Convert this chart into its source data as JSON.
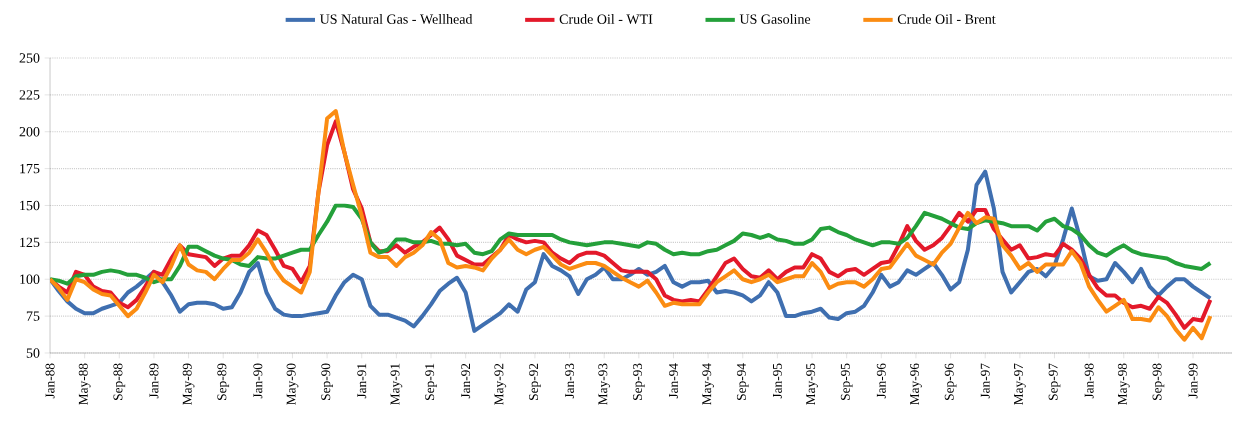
{
  "chart_data": {
    "type": "line",
    "categories": [
      "Jan-88",
      null,
      null,
      null,
      "May-88",
      null,
      null,
      null,
      "Sep-88",
      null,
      null,
      null,
      "Jan-89",
      null,
      null,
      null,
      "May-89",
      null,
      null,
      null,
      "Sep-89",
      null,
      null,
      null,
      "Jan-90",
      null,
      null,
      null,
      "May-90",
      null,
      null,
      null,
      "Sep-90",
      null,
      null,
      null,
      "Jan-91",
      null,
      null,
      null,
      "May-91",
      null,
      null,
      null,
      "Sep-91",
      null,
      null,
      null,
      "Jan-92",
      null,
      null,
      null,
      "May-92",
      null,
      null,
      null,
      "Sep-92",
      null,
      null,
      null,
      "Jan-93",
      null,
      null,
      null,
      "May-93",
      null,
      null,
      null,
      "Sep-93",
      null,
      null,
      null,
      "Jan-94",
      null,
      null,
      null,
      "May-94",
      null,
      null,
      null,
      "Sep-94",
      null,
      null,
      null,
      "Jan-95",
      null,
      null,
      null,
      "May-95",
      null,
      null,
      null,
      "Sep-95",
      null,
      null,
      null,
      "Jan-96",
      null,
      null,
      null,
      "May-96",
      null,
      null,
      null,
      "Sep-96",
      null,
      null,
      null,
      "Jan-97",
      null,
      null,
      null,
      "May-97",
      null,
      null,
      null,
      "Sep-97",
      null,
      null,
      null,
      "Jan-98",
      null,
      null,
      null,
      "May-98",
      null,
      null,
      null,
      "Sep-98",
      null,
      null,
      null,
      "Jan-99",
      null,
      null
    ],
    "series": [
      {
        "name": "US Natural Gas - Wellhead",
        "color": "#3f6fb0",
        "values": [
          100,
          92,
          85,
          80,
          77,
          77,
          80,
          82,
          84,
          91,
          95,
          100,
          105,
          98,
          89,
          78,
          83,
          84,
          84,
          83,
          80,
          81,
          91,
          105,
          111,
          91,
          80,
          76,
          75,
          75,
          76,
          77,
          78,
          89,
          98,
          103,
          100,
          82,
          76,
          76,
          74,
          72,
          68,
          75,
          83,
          92,
          97,
          101,
          91,
          65,
          69,
          73,
          77,
          83,
          78,
          93,
          98,
          117,
          109,
          106,
          102,
          90,
          100,
          103,
          108,
          100,
          100,
          103,
          107,
          103,
          105,
          109,
          98,
          95,
          98,
          98,
          99,
          91,
          92,
          91,
          89,
          85,
          89,
          98,
          91,
          75,
          75,
          77,
          78,
          80,
          74,
          73,
          77,
          78,
          82,
          91,
          103,
          95,
          98,
          106,
          103,
          107,
          111,
          103,
          93,
          98,
          120,
          164,
          173,
          148,
          105,
          91,
          98,
          105,
          107,
          102,
          109,
          127,
          148,
          127,
          102,
          99,
          100,
          111,
          105,
          98,
          107,
          95,
          89,
          95,
          100,
          100,
          95,
          91,
          87
        ]
      },
      {
        "name": "Crude Oil - WTI",
        "color": "#e3192a",
        "values": [
          100,
          95,
          91,
          105,
          103,
          95,
          92,
          91,
          84,
          81,
          86,
          95,
          105,
          103,
          114,
          123,
          117,
          116,
          115,
          109,
          114,
          116,
          116,
          123,
          133,
          130,
          120,
          109,
          107,
          98,
          109,
          159,
          191,
          207,
          186,
          161,
          148,
          125,
          119,
          119,
          123,
          118,
          122,
          125,
          130,
          135,
          127,
          116,
          113,
          110,
          110,
          115,
          120,
          130,
          127,
          125,
          126,
          125,
          118,
          114,
          111,
          116,
          118,
          118,
          116,
          111,
          106,
          105,
          105,
          105,
          100,
          89,
          86,
          85,
          86,
          85,
          93,
          102,
          111,
          114,
          107,
          102,
          101,
          106,
          100,
          105,
          108,
          108,
          117,
          114,
          105,
          102,
          106,
          107,
          103,
          107,
          111,
          112,
          123,
          136,
          126,
          120,
          123,
          128,
          136,
          145,
          139,
          147,
          147,
          134,
          127,
          120,
          123,
          114,
          115,
          117,
          116,
          124,
          120,
          114,
          103,
          94,
          89,
          89,
          84,
          81,
          82,
          80,
          88,
          84,
          76,
          67,
          73,
          72,
          86
        ]
      },
      {
        "name": "US Gasoline",
        "color": "#24a03a",
        "values": [
          100,
          99,
          97,
          102,
          103,
          103,
          105,
          106,
          105,
          103,
          103,
          101,
          98,
          100,
          100,
          109,
          122,
          122,
          119,
          116,
          114,
          113,
          110,
          109,
          115,
          114,
          114,
          116,
          118,
          120,
          120,
          130,
          139,
          150,
          150,
          149,
          141,
          125,
          118,
          120,
          127,
          127,
          125,
          125,
          126,
          124,
          124,
          123,
          124,
          118,
          117,
          119,
          127,
          131,
          130,
          130,
          130,
          130,
          130,
          127,
          125,
          124,
          123,
          124,
          125,
          125,
          124,
          123,
          122,
          125,
          124,
          120,
          117,
          118,
          117,
          117,
          119,
          120,
          123,
          126,
          131,
          130,
          128,
          130,
          127,
          126,
          124,
          124,
          127,
          134,
          135,
          132,
          130,
          127,
          125,
          123,
          125,
          125,
          124,
          128,
          136,
          145,
          143,
          141,
          138,
          135,
          134,
          138,
          140,
          139,
          138,
          136,
          136,
          136,
          133,
          139,
          141,
          136,
          134,
          130,
          123,
          118,
          116,
          120,
          123,
          119,
          117,
          116,
          115,
          114,
          111,
          109,
          108,
          107,
          111
        ]
      },
      {
        "name": "Crude Oil - Brent",
        "color": "#fb8c12",
        "values": [
          100,
          94,
          86,
          100,
          98,
          93,
          90,
          89,
          82,
          75,
          80,
          91,
          103,
          98,
          109,
          123,
          110,
          106,
          105,
          100,
          107,
          113,
          113,
          118,
          127,
          118,
          107,
          99,
          95,
          91,
          105,
          159,
          209,
          214,
          186,
          164,
          143,
          118,
          115,
          115,
          109,
          115,
          118,
          123,
          132,
          127,
          111,
          108,
          109,
          108,
          106,
          114,
          120,
          127,
          120,
          117,
          120,
          122,
          116,
          110,
          107,
          109,
          111,
          111,
          109,
          105,
          101,
          98,
          95,
          99,
          91,
          82,
          84,
          83,
          83,
          83,
          91,
          98,
          102,
          106,
          100,
          98,
          100,
          103,
          98,
          100,
          102,
          102,
          111,
          105,
          94,
          97,
          98,
          98,
          95,
          100,
          107,
          108,
          116,
          124,
          116,
          113,
          110,
          118,
          124,
          135,
          145,
          138,
          142,
          141,
          123,
          116,
          107,
          111,
          105,
          110,
          110,
          110,
          119,
          111,
          95,
          86,
          78,
          82,
          86,
          73,
          73,
          72,
          81,
          75,
          66,
          59,
          67,
          60,
          75
        ]
      }
    ],
    "ylim": [
      50,
      250
    ],
    "yticks": [
      50,
      75,
      100,
      125,
      150,
      175,
      200,
      225,
      250
    ],
    "grid": "y",
    "legend": "top",
    "line_style": "solid"
  }
}
